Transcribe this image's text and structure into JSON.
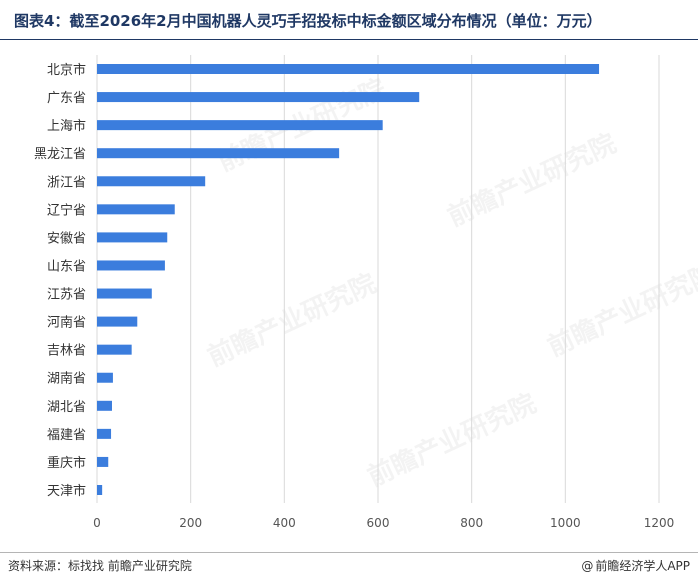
{
  "title": "图表4：截至2026年2月中国机器人灵巧手招投标中标金额区域分布情况（单位：万元）",
  "source": "资料来源：标找找 前瞻产业研究院",
  "credit": "前瞻经济学人APP",
  "credit_icon": "at-sign-icon",
  "watermark": "前瞻产业研究院",
  "colors": {
    "bar": "#3b7ddd",
    "grid": "#d9d9d9",
    "title": "#1f3864"
  },
  "chart_data": {
    "type": "bar",
    "orientation": "horizontal",
    "title": "图表4：截至2026年2月中国机器人灵巧手招投标中标金额区域分布情况（单位：万元）",
    "xlabel": "",
    "ylabel": "",
    "xlim": [
      0,
      1200
    ],
    "xticks": [
      0,
      200,
      400,
      600,
      800,
      1000,
      1200
    ],
    "grid": true,
    "legend": "none",
    "categories": [
      "北京市",
      "广东省",
      "上海市",
      "黑龙江省",
      "浙江省",
      "辽宁省",
      "安徽省",
      "山东省",
      "江苏省",
      "河南省",
      "吉林省",
      "湖南省",
      "湖北省",
      "福建省",
      "重庆市",
      "天津市"
    ],
    "values": [
      1072,
      688,
      610,
      517,
      231,
      166,
      150,
      145,
      117,
      86,
      74,
      34,
      32,
      30,
      24,
      11
    ]
  }
}
